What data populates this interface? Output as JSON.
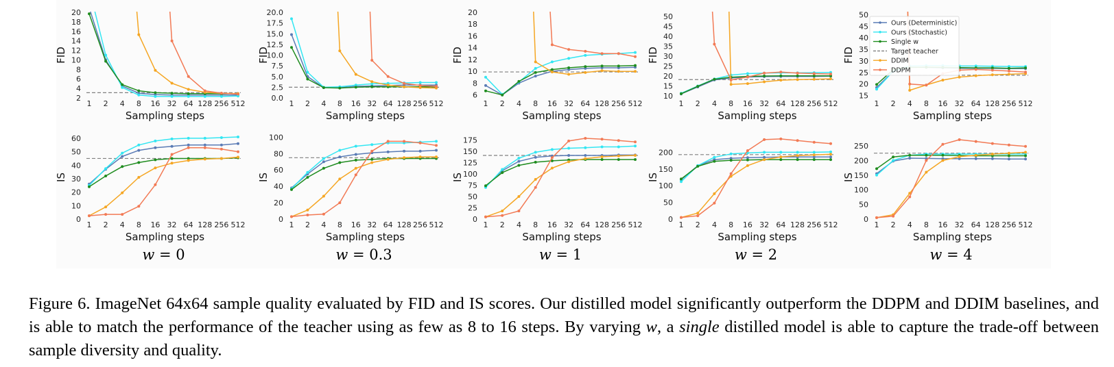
{
  "caption": {
    "label": "Figure 6.",
    "part1": "ImageNet 64x64 sample quality evaluated by FID and IS scores. Our distilled model significantly outperform the DDPM and DDIM baselines, and is able to match the performance of the teacher using as few as 8 to 16 steps. By varying",
    "var": "w",
    "part2": ", a",
    "emph": "single",
    "part3": "distilled model is able to capture the trade-off between sample diversity and quality."
  },
  "colors": {
    "Ours (Deterministic)": "#5a7bb5",
    "Ours (Stochastic)": "#33e6f2",
    "Single w": "#1f8c1f",
    "Target teacher": "#7f7f7f",
    "DDIM": "#f5a623",
    "DDPM": "#f27a55"
  },
  "chart_data": [
    {
      "type": "line",
      "column_label": "w = 0",
      "metric": "FID",
      "xlabel": "Sampling steps",
      "ylabel": "FID",
      "x": [
        1,
        2,
        4,
        8,
        16,
        32,
        64,
        128,
        256,
        512
      ],
      "ylim": [
        2,
        20
      ],
      "yticks": [
        2,
        4,
        6,
        8,
        10,
        12,
        14,
        16,
        18,
        20
      ],
      "ytick_labels": [
        "2",
        "4",
        "6",
        "8",
        "10",
        "12",
        "14",
        "16",
        "18",
        "20"
      ],
      "target": 3.1,
      "series": [
        {
          "name": "Ours (Deterministic)",
          "values": [
            21,
            10,
            4.5,
            3.0,
            2.7,
            2.6,
            2.6,
            2.6,
            2.6,
            2.6
          ]
        },
        {
          "name": "Ours (Stochastic)",
          "values": [
            25,
            11,
            4.2,
            2.6,
            2.3,
            2.3,
            2.3,
            2.3,
            2.3,
            2.4
          ]
        },
        {
          "name": "Single w",
          "values": [
            19.7,
            9.7,
            4.8,
            3.5,
            3.1,
            3.0,
            2.9,
            2.9,
            2.9,
            2.9
          ]
        },
        {
          "name": "DDIM",
          "values": [
            null,
            null,
            null,
            15.3,
            7.8,
            5.1,
            3.8,
            3.2,
            3.0,
            2.9
          ]
        },
        {
          "name": "DDPM",
          "values": [
            null,
            null,
            null,
            null,
            null,
            14,
            6.5,
            3.5,
            3.0,
            2.8
          ]
        }
      ]
    },
    {
      "type": "line",
      "column_label": "w = 0.3",
      "metric": "FID",
      "xlabel": "Sampling steps",
      "ylabel": "FID",
      "x": [
        1,
        2,
        4,
        8,
        16,
        32,
        64,
        128,
        256,
        512
      ],
      "ylim": [
        0,
        20
      ],
      "yticks": [
        0,
        2.5,
        5,
        7.5,
        10,
        12.5,
        15,
        17.5,
        20
      ],
      "ytick_labels": [
        "0.0",
        "2.5",
        "5.0",
        "7.5",
        "10.0",
        "12.5",
        "15.0",
        "17.5",
        "20.0"
      ],
      "target": 2.5,
      "series": [
        {
          "name": "Ours (Deterministic)",
          "values": [
            14.8,
            5.0,
            2.4,
            2.4,
            2.7,
            2.8,
            2.9,
            3.0,
            3.0,
            3.0
          ]
        },
        {
          "name": "Ours (Stochastic)",
          "values": [
            18.5,
            6.0,
            2.5,
            2.6,
            3.0,
            3.3,
            3.4,
            3.5,
            3.6,
            3.6
          ]
        },
        {
          "name": "Single w",
          "values": [
            11.8,
            4.4,
            2.4,
            2.3,
            2.5,
            2.6,
            2.6,
            2.6,
            2.6,
            2.6
          ]
        },
        {
          "name": "DDIM",
          "values": [
            null,
            null,
            null,
            11,
            5.5,
            3.8,
            3.0,
            2.6,
            2.4,
            2.3
          ]
        },
        {
          "name": "DDPM",
          "values": [
            null,
            null,
            null,
            null,
            null,
            8.8,
            5.0,
            3.4,
            2.9,
            2.7
          ]
        }
      ]
    },
    {
      "type": "line",
      "column_label": "w = 1",
      "metric": "FID",
      "xlabel": "Sampling steps",
      "ylabel": "FID",
      "x": [
        1,
        2,
        4,
        8,
        16,
        32,
        64,
        128,
        256,
        512
      ],
      "ylim": [
        5.5,
        20
      ],
      "yticks": [
        6,
        8,
        10,
        12,
        14,
        16,
        18,
        20
      ],
      "ytick_labels": [
        "6",
        "8",
        "10",
        "12",
        "14",
        "16",
        "18",
        "20"
      ],
      "target": 9.9,
      "series": [
        {
          "name": "Ours (Deterministic)",
          "values": [
            7.6,
            6.0,
            8.0,
            9.2,
            10.0,
            10.3,
            10.5,
            10.6,
            10.6,
            10.7
          ]
        },
        {
          "name": "Ours (Stochastic)",
          "values": [
            9.0,
            6.1,
            8.2,
            10.5,
            11.6,
            12.2,
            12.7,
            12.9,
            13.0,
            13.2
          ]
        },
        {
          "name": "Single w",
          "values": [
            6.7,
            6.0,
            8.3,
            9.8,
            10.3,
            10.6,
            10.8,
            10.9,
            10.9,
            11.0
          ]
        },
        {
          "name": "DDIM",
          "values": [
            null,
            null,
            null,
            11.6,
            9.9,
            9.5,
            9.8,
            10.1,
            10.0,
            10.0
          ]
        },
        {
          "name": "DDPM",
          "values": [
            null,
            null,
            null,
            null,
            14.5,
            13.7,
            13.4,
            13.0,
            13.0,
            12.5
          ]
        }
      ]
    },
    {
      "type": "line",
      "column_label": "w = 2",
      "metric": "FID",
      "xlabel": "Sampling steps",
      "ylabel": "FID",
      "x": [
        1,
        2,
        4,
        8,
        16,
        32,
        64,
        128,
        256,
        512
      ],
      "ylim": [
        9,
        52
      ],
      "yticks": [
        10,
        15,
        20,
        25,
        30,
        35,
        40,
        45,
        50
      ],
      "ytick_labels": [
        "10",
        "15",
        "20",
        "25",
        "30",
        "35",
        "40",
        "45",
        "50"
      ],
      "target": 18.2,
      "series": [
        {
          "name": "Ours (Deterministic)",
          "values": [
            11,
            14.5,
            18.0,
            19.0,
            19.5,
            19.7,
            19.8,
            19.8,
            19.8,
            19.9
          ]
        },
        {
          "name": "Ours (Stochastic)",
          "values": [
            11.3,
            15.0,
            18.5,
            20.5,
            21.2,
            21.5,
            21.6,
            21.6,
            21.7,
            21.8
          ]
        },
        {
          "name": "Single w",
          "values": [
            11.1,
            14.8,
            18.4,
            19.4,
            19.8,
            20.0,
            20.1,
            20.1,
            20.1,
            20.1
          ]
        },
        {
          "name": "DDIM",
          "values": [
            null,
            null,
            null,
            15.8,
            16.2,
            17.1,
            17.9,
            18.2,
            18.4,
            18.6
          ]
        },
        {
          "name": "DDPM",
          "values": [
            null,
            null,
            36,
            18,
            19.5,
            21.5,
            22,
            21.5,
            21.2,
            21.0
          ]
        }
      ]
    },
    {
      "type": "line",
      "column_label": "w = 4",
      "metric": "FID",
      "xlabel": "Sampling steps",
      "ylabel": "FID",
      "x": [
        1,
        2,
        4,
        8,
        16,
        32,
        64,
        128,
        256,
        512
      ],
      "ylim": [
        14,
        51
      ],
      "yticks": [
        15,
        20,
        25,
        30,
        35,
        40,
        45,
        50
      ],
      "ytick_labels": [
        "15",
        "20",
        "25",
        "30",
        "35",
        "40",
        "45",
        "50"
      ],
      "target": 23.8,
      "legend_position": "top-left",
      "series": [
        {
          "name": "Ours (Deterministic)",
          "values": [
            18.5,
            25.5,
            27.2,
            27.2,
            27.0,
            26.8,
            26.8,
            26.8,
            26.7,
            26.7
          ]
        },
        {
          "name": "Ours (Stochastic)",
          "values": [
            17.8,
            25.5,
            27.8,
            28.0,
            28.0,
            27.8,
            27.8,
            27.7,
            27.6,
            27.6
          ]
        },
        {
          "name": "Single w",
          "values": [
            19.8,
            26.2,
            27.2,
            27.3,
            27.2,
            27.1,
            27.0,
            27.0,
            26.8,
            27.0
          ]
        },
        {
          "name": "DDIM",
          "values": [
            null,
            null,
            17.3,
            19.6,
            21.7,
            23.0,
            23.6,
            24.0,
            24.2,
            24.5
          ]
        },
        {
          "name": "DDPM",
          "values": [
            null,
            null,
            20,
            19.5,
            24.5,
            26,
            26.3,
            26.0,
            25.6,
            25.2
          ]
        }
      ]
    },
    {
      "type": "line",
      "column_label": "w = 0",
      "metric": "IS",
      "xlabel": "Sampling steps",
      "ylabel": "IS",
      "x": [
        1,
        2,
        4,
        8,
        16,
        32,
        64,
        128,
        256,
        512
      ],
      "ylim": [
        0,
        62
      ],
      "yticks": [
        0,
        10,
        20,
        30,
        40,
        50,
        60
      ],
      "ytick_labels": [
        "0",
        "10",
        "20",
        "30",
        "40",
        "50",
        "60"
      ],
      "target": 45,
      "series": [
        {
          "name": "Ours (Deterministic)",
          "values": [
            26,
            37,
            46.5,
            51,
            53,
            54,
            55,
            55,
            55,
            56
          ]
        },
        {
          "name": "Ours (Stochastic)",
          "values": [
            25,
            37.5,
            49,
            55,
            58,
            59.5,
            60,
            60,
            60.5,
            61
          ]
        },
        {
          "name": "Single w",
          "values": [
            24,
            32,
            39,
            42,
            44,
            45,
            45,
            45,
            45,
            45.5
          ]
        },
        {
          "name": "DDIM",
          "values": [
            2.5,
            9,
            19.5,
            31,
            38,
            41.5,
            43.5,
            44.5,
            45,
            46
          ]
        },
        {
          "name": "DDPM",
          "values": [
            2.5,
            3.5,
            3.5,
            9.5,
            25.5,
            48,
            53,
            53,
            52,
            50
          ]
        }
      ]
    },
    {
      "type": "line",
      "column_label": "w = 0.3",
      "metric": "IS",
      "xlabel": "Sampling steps",
      "ylabel": "IS",
      "x": [
        1,
        2,
        4,
        8,
        16,
        32,
        64,
        128,
        256,
        512
      ],
      "ylim": [
        0,
        102
      ],
      "yticks": [
        0,
        20,
        40,
        60,
        80,
        100
      ],
      "ytick_labels": [
        "0",
        "20",
        "40",
        "60",
        "80",
        "100"
      ],
      "target": 75,
      "series": [
        {
          "name": "Ours (Deterministic)",
          "values": [
            38,
            55,
            70,
            76,
            79,
            81,
            82,
            83,
            83,
            84
          ]
        },
        {
          "name": "Ours (Stochastic)",
          "values": [
            37,
            57,
            74,
            84,
            89,
            91,
            93,
            93,
            94,
            95
          ]
        },
        {
          "name": "Single w",
          "values": [
            36,
            51,
            62,
            69,
            72,
            73,
            74,
            74,
            74,
            74
          ]
        },
        {
          "name": "DDIM",
          "values": [
            3,
            11,
            28,
            49,
            62,
            69,
            73,
            75,
            76,
            76
          ]
        },
        {
          "name": "DDPM",
          "values": [
            3,
            5,
            6,
            20,
            54,
            83,
            95,
            95,
            93,
            90
          ]
        }
      ]
    },
    {
      "type": "line",
      "column_label": "w = 1",
      "metric": "IS",
      "xlabel": "Sampling steps",
      "ylabel": "IS",
      "x": [
        1,
        2,
        4,
        8,
        16,
        32,
        64,
        128,
        256,
        512
      ],
      "ylim": [
        0,
        185
      ],
      "yticks": [
        0,
        25,
        50,
        75,
        100,
        125,
        150,
        175
      ],
      "ytick_labels": [
        "0",
        "25",
        "50",
        "75",
        "100",
        "125",
        "150",
        "175"
      ],
      "target": 141,
      "series": [
        {
          "name": "Ours (Deterministic)",
          "values": [
            72,
            107,
            128,
            137,
            140,
            141,
            141,
            141,
            142,
            142
          ]
        },
        {
          "name": "Ours (Stochastic)",
          "values": [
            70,
            110,
            135,
            148,
            154,
            157,
            158,
            160,
            160,
            162
          ]
        },
        {
          "name": "Single w",
          "values": [
            74,
            103,
            119,
            126,
            129,
            131,
            132,
            132,
            132,
            132
          ]
        },
        {
          "name": "DDIM",
          "values": [
            5,
            18,
            50,
            88,
            113,
            127,
            134,
            138,
            140,
            141
          ]
        },
        {
          "name": "DDPM",
          "values": [
            5,
            8,
            18,
            70,
            136,
            173,
            179,
            177,
            174,
            171
          ]
        }
      ]
    },
    {
      "type": "line",
      "column_label": "w = 2",
      "metric": "IS",
      "xlabel": "Sampling steps",
      "ylabel": "IS",
      "x": [
        1,
        2,
        4,
        8,
        16,
        32,
        64,
        128,
        256,
        512
      ],
      "ylim": [
        0,
        250
      ],
      "yticks": [
        0,
        50,
        100,
        150,
        200
      ],
      "ytick_labels": [
        "0",
        "50",
        "100",
        "150",
        "200"
      ],
      "target": 193,
      "series": [
        {
          "name": "Ours (Deterministic)",
          "values": [
            118,
            160,
            178,
            182,
            184,
            185,
            186,
            186,
            186,
            186
          ]
        },
        {
          "name": "Ours (Stochastic)",
          "values": [
            112,
            160,
            185,
            195,
            198,
            200,
            200,
            200,
            200,
            201
          ]
        },
        {
          "name": "Single w",
          "values": [
            120,
            158,
            173,
            176,
            177,
            178,
            178,
            178,
            178,
            178
          ]
        },
        {
          "name": "DDIM",
          "values": [
            5,
            18,
            76,
            128,
            160,
            178,
            186,
            190,
            192,
            194
          ]
        },
        {
          "name": "DDPM",
          "values": [
            5,
            10,
            48,
            136,
            205,
            238,
            240,
            235,
            230,
            226
          ]
        }
      ]
    },
    {
      "type": "line",
      "column_label": "w = 4",
      "metric": "IS",
      "xlabel": "Sampling steps",
      "ylabel": "IS",
      "x": [
        1,
        2,
        4,
        8,
        16,
        32,
        64,
        128,
        256,
        512
      ],
      "ylim": [
        0,
        285
      ],
      "yticks": [
        0,
        50,
        100,
        150,
        200,
        250
      ],
      "ytick_labels": [
        "0",
        "50",
        "100",
        "150",
        "200",
        "250"
      ],
      "target": 225,
      "series": [
        {
          "name": "Ours (Deterministic)",
          "values": [
            155,
            198,
            208,
            207,
            206,
            206,
            206,
            206,
            205,
            205
          ]
        },
        {
          "name": "Ours (Stochastic)",
          "values": [
            150,
            200,
            218,
            222,
            222,
            222,
            222,
            222,
            222,
            222
          ]
        },
        {
          "name": "Single w",
          "values": [
            172,
            212,
            218,
            218,
            218,
            217,
            216,
            216,
            216,
            216
          ]
        },
        {
          "name": "DDIM",
          "values": [
            5,
            15,
            88,
            160,
            200,
            213,
            218,
            222,
            225,
            228
          ]
        },
        {
          "name": "DDPM",
          "values": [
            5,
            10,
            76,
            200,
            255,
            271,
            265,
            258,
            253,
            248
          ]
        }
      ]
    }
  ]
}
